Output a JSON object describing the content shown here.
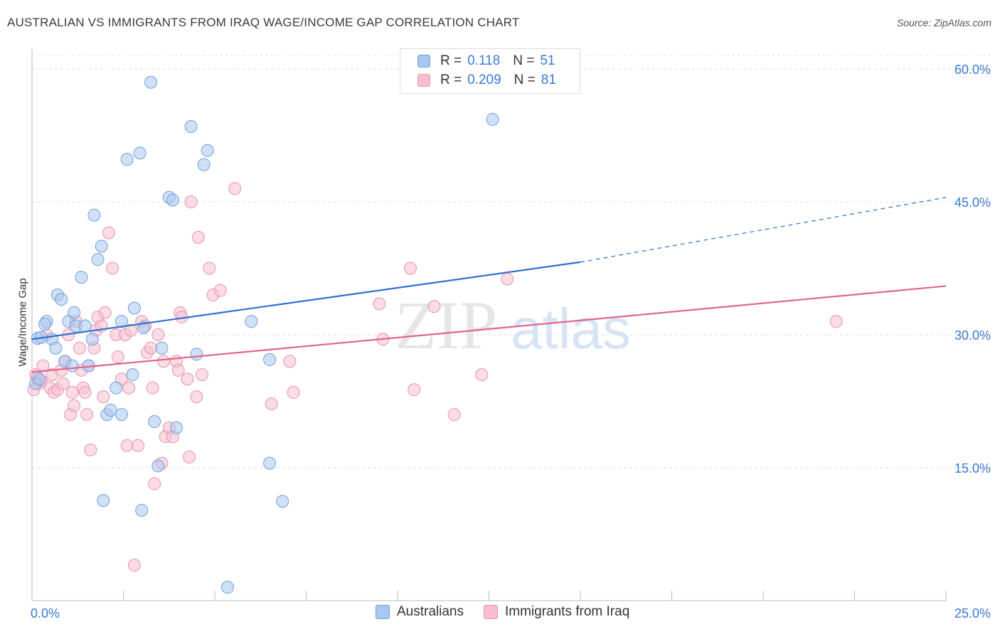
{
  "title": "AUSTRALIAN VS IMMIGRANTS FROM IRAQ WAGE/INCOME GAP CORRELATION CHART",
  "source": "Source: ZipAtlas.com",
  "watermark": {
    "zip": "ZIP",
    "atlas": "atlas"
  },
  "legend": {
    "r_label": "R =",
    "n_label": "N =",
    "rows": [
      {
        "r": "0.118",
        "n": "51"
      },
      {
        "r": "0.209",
        "n": "81"
      }
    ]
  },
  "bottom_legend": [
    "Australians",
    "Immigrants from Iraq"
  ],
  "colors": {
    "blue_fill": "#a9c8f0",
    "blue_stroke": "#6f9fd8",
    "blue_line": "#2f6fcf",
    "pink_fill": "#f6bfd0",
    "pink_stroke": "#e892ae",
    "pink_line": "#e0648e",
    "axis_text": "#3a78d6"
  },
  "chart_data": {
    "type": "scatter",
    "title": "AUSTRALIAN VS IMMIGRANTS FROM IRAQ WAGE/INCOME GAP CORRELATION CHART",
    "xlabel": "",
    "ylabel": "Wage/Income Gap",
    "xlim": [
      0,
      25
    ],
    "ylim": [
      0,
      60
    ],
    "x_tick_labels": [
      "0.0%",
      "25.0%"
    ],
    "y_ticks": [
      15,
      30,
      45,
      60
    ],
    "y_tick_labels": [
      "15.0%",
      "30.0%",
      "45.0%",
      "60.0%"
    ],
    "grid": true,
    "legend_position": "top-center",
    "series": [
      {
        "name": "Australians",
        "r": 0.118,
        "n": 51,
        "trend": {
          "x0": 0,
          "y0": 29.5,
          "x1": 15,
          "y1": 38.2,
          "dashed_to_x": 25,
          "dashed_to_y": 45.5
        },
        "points": [
          [
            0.15,
            29.6
          ],
          [
            0.4,
            31.5
          ],
          [
            0.55,
            29.5
          ],
          [
            0.65,
            28.5
          ],
          [
            0.7,
            34.5
          ],
          [
            0.8,
            34.0
          ],
          [
            0.9,
            27.0
          ],
          [
            1.0,
            31.5
          ],
          [
            1.1,
            26.5
          ],
          [
            1.15,
            32.5
          ],
          [
            1.2,
            31.0
          ],
          [
            1.35,
            36.5
          ],
          [
            1.45,
            31.0
          ],
          [
            1.55,
            26.5
          ],
          [
            1.65,
            29.5
          ],
          [
            1.7,
            43.5
          ],
          [
            1.8,
            38.5
          ],
          [
            1.9,
            40.0
          ],
          [
            1.95,
            11.3
          ],
          [
            2.05,
            21.0
          ],
          [
            2.15,
            21.5
          ],
          [
            2.3,
            24.0
          ],
          [
            2.45,
            31.5
          ],
          [
            2.45,
            21.0
          ],
          [
            2.6,
            49.8
          ],
          [
            2.75,
            25.5
          ],
          [
            2.8,
            33.0
          ],
          [
            2.95,
            50.5
          ],
          [
            3.0,
            10.2
          ],
          [
            3.05,
            30.8
          ],
          [
            3.25,
            58.5
          ],
          [
            3.35,
            20.2
          ],
          [
            3.45,
            15.2
          ],
          [
            3.55,
            28.5
          ],
          [
            3.75,
            45.5
          ],
          [
            3.85,
            45.2
          ],
          [
            3.95,
            19.5
          ],
          [
            4.35,
            53.5
          ],
          [
            4.5,
            27.8
          ],
          [
            4.7,
            49.2
          ],
          [
            4.8,
            50.8
          ],
          [
            5.35,
            1.5
          ],
          [
            6.0,
            31.5
          ],
          [
            6.5,
            15.5
          ],
          [
            6.5,
            27.2
          ],
          [
            6.85,
            11.2
          ],
          [
            12.6,
            54.3
          ],
          [
            0.1,
            24.5
          ],
          [
            0.25,
            29.7
          ],
          [
            0.35,
            31.2
          ],
          [
            0.2,
            25.0
          ]
        ]
      },
      {
        "name": "Immigrants from Iraq",
        "r": 0.209,
        "n": 81,
        "trend": {
          "x0": 0,
          "y0": 25.8,
          "x1": 25,
          "y1": 35.5
        },
        "points": [
          [
            0.05,
            23.8
          ],
          [
            0.1,
            25.5
          ],
          [
            0.2,
            24.5
          ],
          [
            0.3,
            26.5
          ],
          [
            0.4,
            30.0
          ],
          [
            0.5,
            24.0
          ],
          [
            0.55,
            25.5
          ],
          [
            0.6,
            23.5
          ],
          [
            0.7,
            23.8
          ],
          [
            0.8,
            26.0
          ],
          [
            0.85,
            24.5
          ],
          [
            0.9,
            27.0
          ],
          [
            1.0,
            30.0
          ],
          [
            1.05,
            21.0
          ],
          [
            1.1,
            23.5
          ],
          [
            1.15,
            22.0
          ],
          [
            1.2,
            31.5
          ],
          [
            1.3,
            28.5
          ],
          [
            1.35,
            26.0
          ],
          [
            1.4,
            24.0
          ],
          [
            1.45,
            23.5
          ],
          [
            1.5,
            21.0
          ],
          [
            1.55,
            26.5
          ],
          [
            1.6,
            17.0
          ],
          [
            1.7,
            28.5
          ],
          [
            1.75,
            30.5
          ],
          [
            1.8,
            32.0
          ],
          [
            1.9,
            31.0
          ],
          [
            1.95,
            23.0
          ],
          [
            2.0,
            32.5
          ],
          [
            2.1,
            41.5
          ],
          [
            2.2,
            37.5
          ],
          [
            2.3,
            30.0
          ],
          [
            2.35,
            27.5
          ],
          [
            2.45,
            25.0
          ],
          [
            2.55,
            30.0
          ],
          [
            2.6,
            17.5
          ],
          [
            2.65,
            24.0
          ],
          [
            2.7,
            30.5
          ],
          [
            2.8,
            4.0
          ],
          [
            2.9,
            17.5
          ],
          [
            3.0,
            31.5
          ],
          [
            3.1,
            31.0
          ],
          [
            3.15,
            28.0
          ],
          [
            3.25,
            28.5
          ],
          [
            3.3,
            24.0
          ],
          [
            3.35,
            13.2
          ],
          [
            3.45,
            30.0
          ],
          [
            3.55,
            15.5
          ],
          [
            3.6,
            27.0
          ],
          [
            3.65,
            18.5
          ],
          [
            3.75,
            19.5
          ],
          [
            3.85,
            18.5
          ],
          [
            3.95,
            27.0
          ],
          [
            4.0,
            26.0
          ],
          [
            4.05,
            32.5
          ],
          [
            4.1,
            32.0
          ],
          [
            4.25,
            25.0
          ],
          [
            4.3,
            16.2
          ],
          [
            4.35,
            45.0
          ],
          [
            4.5,
            23.0
          ],
          [
            4.55,
            41.0
          ],
          [
            4.65,
            25.5
          ],
          [
            4.85,
            37.5
          ],
          [
            4.95,
            34.5
          ],
          [
            5.15,
            35.0
          ],
          [
            5.55,
            46.5
          ],
          [
            6.55,
            22.2
          ],
          [
            7.05,
            27.0
          ],
          [
            7.15,
            23.5
          ],
          [
            9.5,
            33.5
          ],
          [
            9.6,
            29.5
          ],
          [
            10.35,
            37.5
          ],
          [
            10.45,
            23.8
          ],
          [
            11.0,
            33.2
          ],
          [
            11.55,
            21.0
          ],
          [
            12.3,
            25.5
          ],
          [
            13.0,
            36.3
          ],
          [
            22.0,
            31.5
          ],
          [
            0.15,
            25.2
          ],
          [
            0.25,
            24.8
          ]
        ]
      }
    ]
  }
}
